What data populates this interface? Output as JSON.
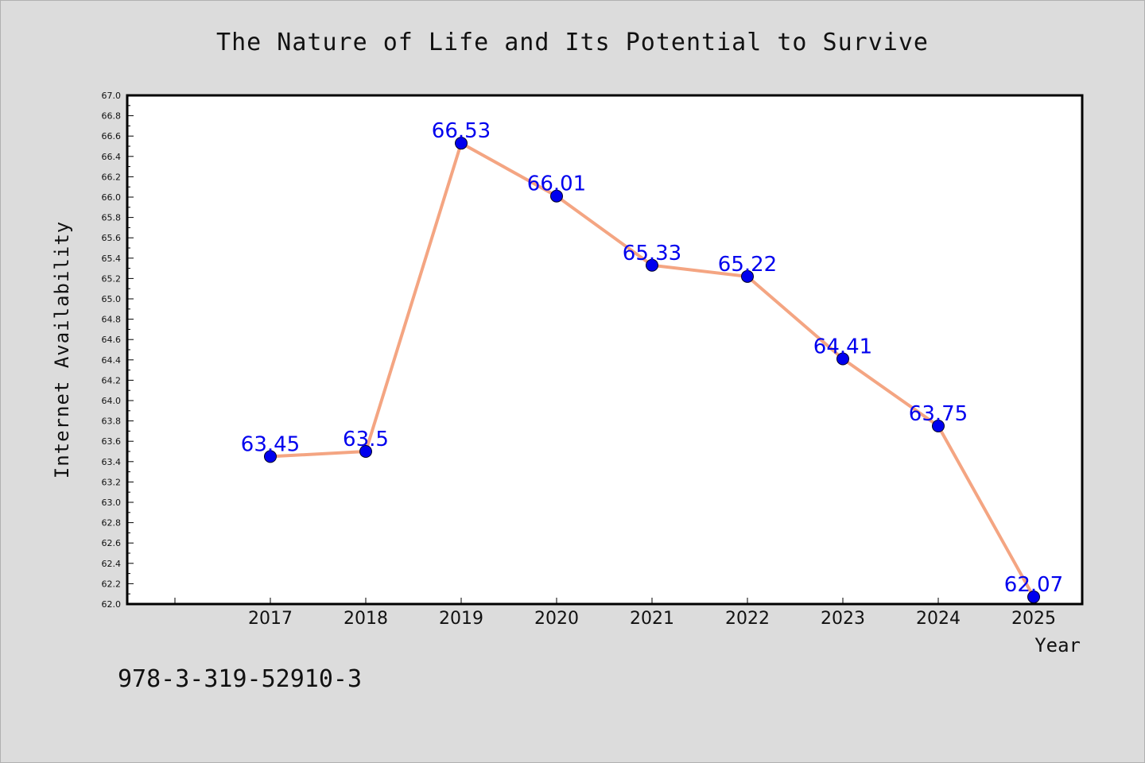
{
  "chart_data": {
    "type": "line",
    "title": "The Nature of Life and Its Potential to Survive",
    "xlabel": "Year",
    "ylabel": "Internet Availability",
    "categories": [
      "2017",
      "2018",
      "2019",
      "2020",
      "2021",
      "2022",
      "2023",
      "2024",
      "2025"
    ],
    "series": [
      {
        "values": [
          63.45,
          63.5,
          66.53,
          66.01,
          65.33,
          65.22,
          64.41,
          63.75,
          62.07
        ],
        "data_labels": [
          "63.45",
          "63.5",
          "66.53",
          "66.01",
          "65.33",
          "65.22",
          "64.41",
          "63.75",
          "62.07"
        ]
      }
    ],
    "ylim": [
      62.0,
      67.0
    ],
    "ytick_step": 0.2,
    "grid": false,
    "legend": "none",
    "colors": {
      "line": "#f4a582",
      "marker": "#0000ee",
      "data_label": "#0000ee",
      "background": "#dcdcdc",
      "plot_background": "#ffffff"
    }
  },
  "footer": {
    "code": "978-3-319-52910-3"
  }
}
